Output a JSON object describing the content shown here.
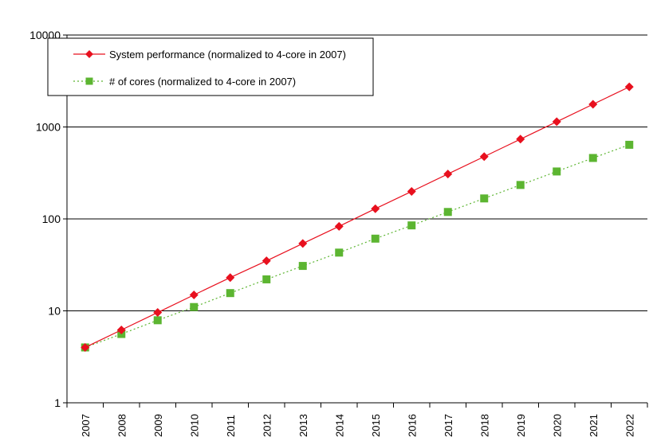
{
  "chart_data": {
    "type": "line",
    "title": "",
    "xlabel": "",
    "ylabel": "",
    "yscale": "log",
    "ylim": [
      1,
      10000
    ],
    "y_ticks": [
      "1",
      "10",
      "100",
      "1000",
      "10000"
    ],
    "categories": [
      "2007",
      "2008",
      "2009",
      "2010",
      "2011",
      "2012",
      "2013",
      "2014",
      "2015",
      "2016",
      "2017",
      "2018",
      "2019",
      "2020",
      "2021",
      "2022"
    ],
    "grid": "horizontal",
    "legend_position": "top-left",
    "series": [
      {
        "name": "System performance (normalized to 4-core in 2007)",
        "color": "#e8101e",
        "marker": "diamond",
        "line_style": "solid",
        "values": [
          4,
          6.2,
          9.6,
          14.9,
          23,
          35,
          54,
          83,
          129,
          199,
          308,
          476,
          737,
          1140,
          1765,
          2730
        ]
      },
      {
        "name": "# of cores (normalized to 4-core in 2007)",
        "color": "#5cb531",
        "marker": "square",
        "line_style": "dotted",
        "values": [
          4,
          5.6,
          7.9,
          11,
          15.6,
          22,
          30.8,
          43,
          61,
          85,
          119,
          167,
          234,
          328,
          460,
          640
        ]
      }
    ]
  }
}
